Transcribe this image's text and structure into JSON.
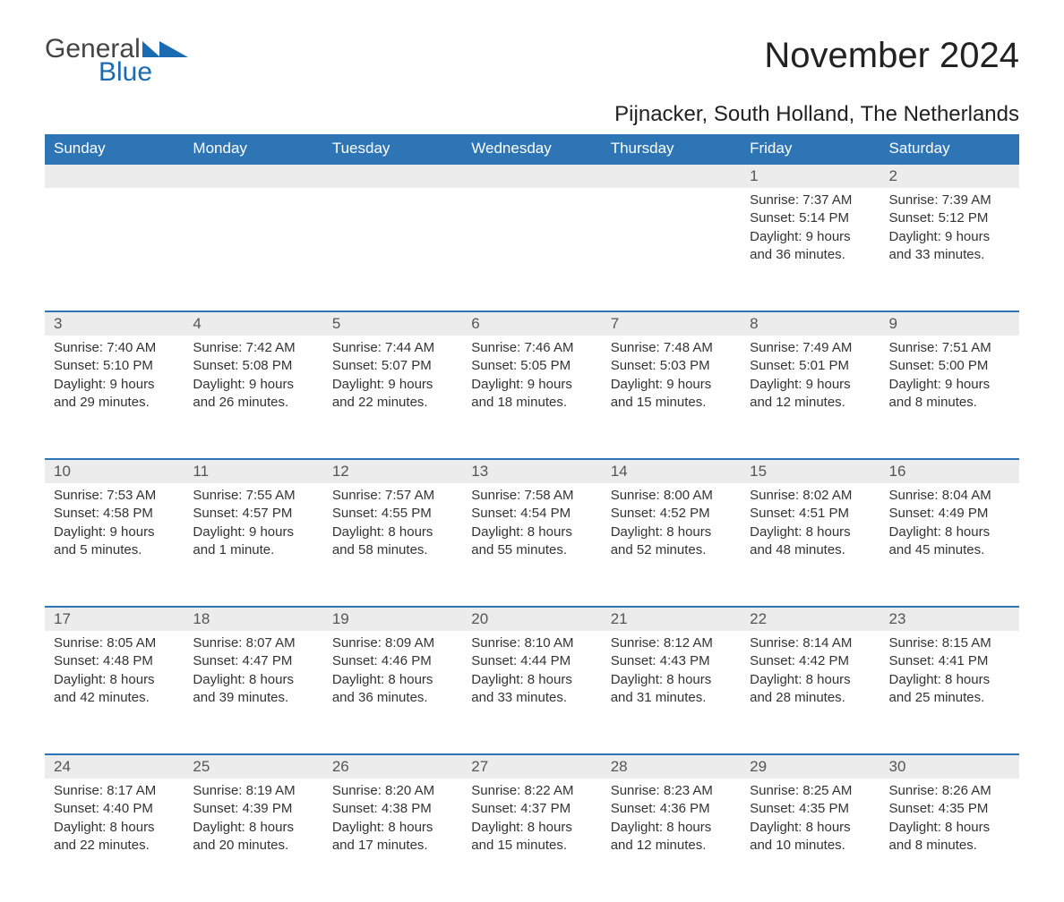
{
  "brand": {
    "word1": "General",
    "word2": "Blue",
    "color": "#1a6bb0"
  },
  "title": "November 2024",
  "location": "Pijnacker, South Holland, The Netherlands",
  "colors": {
    "header_bg": "#2e75b6",
    "header_text": "#ffffff",
    "row_divider": "#2e75b6",
    "daynum_bg": "#ececec",
    "body_text": "#333333",
    "page_bg": "#ffffff"
  },
  "font": {
    "family": "Arial",
    "title_size_pt": 30,
    "location_size_pt": 18,
    "header_size_pt": 13,
    "body_size_pt": 11
  },
  "day_names": [
    "Sunday",
    "Monday",
    "Tuesday",
    "Wednesday",
    "Thursday",
    "Friday",
    "Saturday"
  ],
  "weeks": [
    [
      null,
      null,
      null,
      null,
      null,
      {
        "n": "1",
        "sunrise": "Sunrise: 7:37 AM",
        "sunset": "Sunset: 5:14 PM",
        "daylight": "Daylight: 9 hours and 36 minutes."
      },
      {
        "n": "2",
        "sunrise": "Sunrise: 7:39 AM",
        "sunset": "Sunset: 5:12 PM",
        "daylight": "Daylight: 9 hours and 33 minutes."
      }
    ],
    [
      {
        "n": "3",
        "sunrise": "Sunrise: 7:40 AM",
        "sunset": "Sunset: 5:10 PM",
        "daylight": "Daylight: 9 hours and 29 minutes."
      },
      {
        "n": "4",
        "sunrise": "Sunrise: 7:42 AM",
        "sunset": "Sunset: 5:08 PM",
        "daylight": "Daylight: 9 hours and 26 minutes."
      },
      {
        "n": "5",
        "sunrise": "Sunrise: 7:44 AM",
        "sunset": "Sunset: 5:07 PM",
        "daylight": "Daylight: 9 hours and 22 minutes."
      },
      {
        "n": "6",
        "sunrise": "Sunrise: 7:46 AM",
        "sunset": "Sunset: 5:05 PM",
        "daylight": "Daylight: 9 hours and 18 minutes."
      },
      {
        "n": "7",
        "sunrise": "Sunrise: 7:48 AM",
        "sunset": "Sunset: 5:03 PM",
        "daylight": "Daylight: 9 hours and 15 minutes."
      },
      {
        "n": "8",
        "sunrise": "Sunrise: 7:49 AM",
        "sunset": "Sunset: 5:01 PM",
        "daylight": "Daylight: 9 hours and 12 minutes."
      },
      {
        "n": "9",
        "sunrise": "Sunrise: 7:51 AM",
        "sunset": "Sunset: 5:00 PM",
        "daylight": "Daylight: 9 hours and 8 minutes."
      }
    ],
    [
      {
        "n": "10",
        "sunrise": "Sunrise: 7:53 AM",
        "sunset": "Sunset: 4:58 PM",
        "daylight": "Daylight: 9 hours and 5 minutes."
      },
      {
        "n": "11",
        "sunrise": "Sunrise: 7:55 AM",
        "sunset": "Sunset: 4:57 PM",
        "daylight": "Daylight: 9 hours and 1 minute."
      },
      {
        "n": "12",
        "sunrise": "Sunrise: 7:57 AM",
        "sunset": "Sunset: 4:55 PM",
        "daylight": "Daylight: 8 hours and 58 minutes."
      },
      {
        "n": "13",
        "sunrise": "Sunrise: 7:58 AM",
        "sunset": "Sunset: 4:54 PM",
        "daylight": "Daylight: 8 hours and 55 minutes."
      },
      {
        "n": "14",
        "sunrise": "Sunrise: 8:00 AM",
        "sunset": "Sunset: 4:52 PM",
        "daylight": "Daylight: 8 hours and 52 minutes."
      },
      {
        "n": "15",
        "sunrise": "Sunrise: 8:02 AM",
        "sunset": "Sunset: 4:51 PM",
        "daylight": "Daylight: 8 hours and 48 minutes."
      },
      {
        "n": "16",
        "sunrise": "Sunrise: 8:04 AM",
        "sunset": "Sunset: 4:49 PM",
        "daylight": "Daylight: 8 hours and 45 minutes."
      }
    ],
    [
      {
        "n": "17",
        "sunrise": "Sunrise: 8:05 AM",
        "sunset": "Sunset: 4:48 PM",
        "daylight": "Daylight: 8 hours and 42 minutes."
      },
      {
        "n": "18",
        "sunrise": "Sunrise: 8:07 AM",
        "sunset": "Sunset: 4:47 PM",
        "daylight": "Daylight: 8 hours and 39 minutes."
      },
      {
        "n": "19",
        "sunrise": "Sunrise: 8:09 AM",
        "sunset": "Sunset: 4:46 PM",
        "daylight": "Daylight: 8 hours and 36 minutes."
      },
      {
        "n": "20",
        "sunrise": "Sunrise: 8:10 AM",
        "sunset": "Sunset: 4:44 PM",
        "daylight": "Daylight: 8 hours and 33 minutes."
      },
      {
        "n": "21",
        "sunrise": "Sunrise: 8:12 AM",
        "sunset": "Sunset: 4:43 PM",
        "daylight": "Daylight: 8 hours and 31 minutes."
      },
      {
        "n": "22",
        "sunrise": "Sunrise: 8:14 AM",
        "sunset": "Sunset: 4:42 PM",
        "daylight": "Daylight: 8 hours and 28 minutes."
      },
      {
        "n": "23",
        "sunrise": "Sunrise: 8:15 AM",
        "sunset": "Sunset: 4:41 PM",
        "daylight": "Daylight: 8 hours and 25 minutes."
      }
    ],
    [
      {
        "n": "24",
        "sunrise": "Sunrise: 8:17 AM",
        "sunset": "Sunset: 4:40 PM",
        "daylight": "Daylight: 8 hours and 22 minutes."
      },
      {
        "n": "25",
        "sunrise": "Sunrise: 8:19 AM",
        "sunset": "Sunset: 4:39 PM",
        "daylight": "Daylight: 8 hours and 20 minutes."
      },
      {
        "n": "26",
        "sunrise": "Sunrise: 8:20 AM",
        "sunset": "Sunset: 4:38 PM",
        "daylight": "Daylight: 8 hours and 17 minutes."
      },
      {
        "n": "27",
        "sunrise": "Sunrise: 8:22 AM",
        "sunset": "Sunset: 4:37 PM",
        "daylight": "Daylight: 8 hours and 15 minutes."
      },
      {
        "n": "28",
        "sunrise": "Sunrise: 8:23 AM",
        "sunset": "Sunset: 4:36 PM",
        "daylight": "Daylight: 8 hours and 12 minutes."
      },
      {
        "n": "29",
        "sunrise": "Sunrise: 8:25 AM",
        "sunset": "Sunset: 4:35 PM",
        "daylight": "Daylight: 8 hours and 10 minutes."
      },
      {
        "n": "30",
        "sunrise": "Sunrise: 8:26 AM",
        "sunset": "Sunset: 4:35 PM",
        "daylight": "Daylight: 8 hours and 8 minutes."
      }
    ]
  ]
}
